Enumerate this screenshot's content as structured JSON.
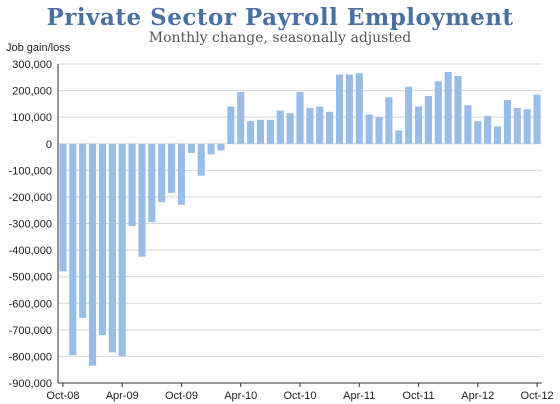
{
  "chart_data": {
    "type": "bar",
    "title": "Private Sector Payroll Employment",
    "subtitle": "Monthly change, seasonally adjusted",
    "ylabel": "Job gain/loss",
    "xlabel": "",
    "ylim": [
      -900000,
      300000
    ],
    "yticks": [
      300000,
      200000,
      100000,
      0,
      -100000,
      -200000,
      -300000,
      -400000,
      -500000,
      -600000,
      -700000,
      -800000,
      -900000
    ],
    "ytick_labels": [
      "300,000",
      "200,000",
      "100,000",
      "0",
      "-100,000",
      "-200,000",
      "-300,000",
      "-400,000",
      "-500,000",
      "-600,000",
      "-700,000",
      "-800,000",
      "-900,000"
    ],
    "xtick_labels": [
      "Oct-08",
      "Apr-09",
      "Oct-09",
      "Apr-10",
      "Oct-10",
      "Apr-11",
      "Oct-11",
      "Apr-12",
      "Oct-12"
    ],
    "grid": true,
    "bar_color": "#99bde6",
    "categories": [
      "Oct-08",
      "Nov-08",
      "Dec-08",
      "Jan-09",
      "Feb-09",
      "Mar-09",
      "Apr-09",
      "May-09",
      "Jun-09",
      "Jul-09",
      "Aug-09",
      "Sep-09",
      "Oct-09",
      "Nov-09",
      "Dec-09",
      "Jan-10",
      "Feb-10",
      "Mar-10",
      "Apr-10",
      "May-10",
      "Jun-10",
      "Jul-10",
      "Aug-10",
      "Sep-10",
      "Oct-10",
      "Nov-10",
      "Dec-10",
      "Jan-11",
      "Feb-11",
      "Mar-11",
      "Apr-11",
      "May-11",
      "Jun-11",
      "Jul-11",
      "Aug-11",
      "Sep-11",
      "Oct-11",
      "Nov-11",
      "Dec-11",
      "Jan-12",
      "Feb-12",
      "Mar-12",
      "Apr-12",
      "May-12",
      "Jun-12",
      "Jul-12",
      "Aug-12",
      "Sep-12",
      "Oct-12"
    ],
    "values": [
      -480000,
      -795000,
      -655000,
      -835000,
      -720000,
      -785000,
      -800000,
      -310000,
      -425000,
      -295000,
      -220000,
      -185000,
      -230000,
      -35000,
      -120000,
      -40000,
      -25000,
      140000,
      195000,
      85000,
      90000,
      90000,
      125000,
      115000,
      195000,
      135000,
      140000,
      120000,
      260000,
      260000,
      265000,
      110000,
      100000,
      175000,
      50000,
      215000,
      140000,
      180000,
      235000,
      270000,
      255000,
      145000,
      85000,
      105000,
      65000,
      165000,
      135000,
      130000,
      185000
    ]
  }
}
